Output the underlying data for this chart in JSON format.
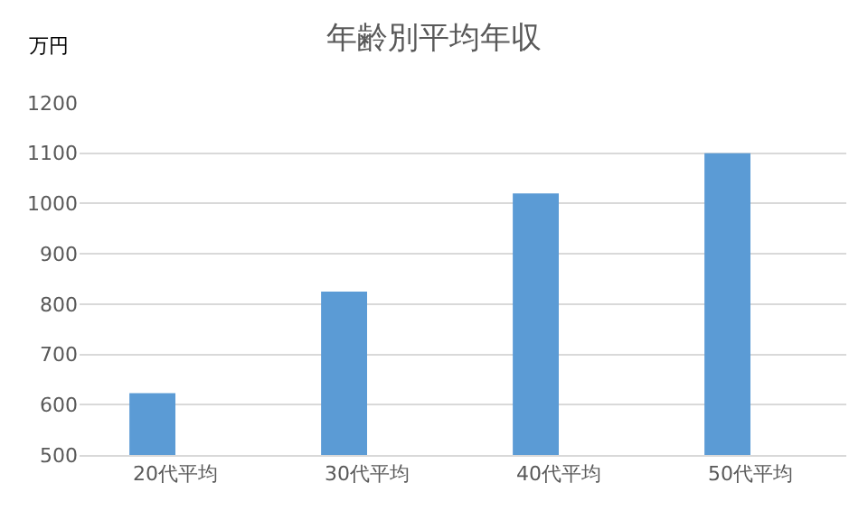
{
  "chart_data": {
    "type": "bar",
    "title": "年齢別平均年収",
    "ylabel": "万円",
    "categories": [
      "20代平均",
      "30代平均",
      "40代平均",
      "50代平均"
    ],
    "values": [
      623,
      825,
      1020,
      1100
    ],
    "color": "#5b9bd5",
    "ylim": [
      500,
      1200
    ],
    "yticks": [
      500,
      600,
      700,
      800,
      900,
      1000,
      1100,
      1200
    ],
    "grid": "y"
  }
}
